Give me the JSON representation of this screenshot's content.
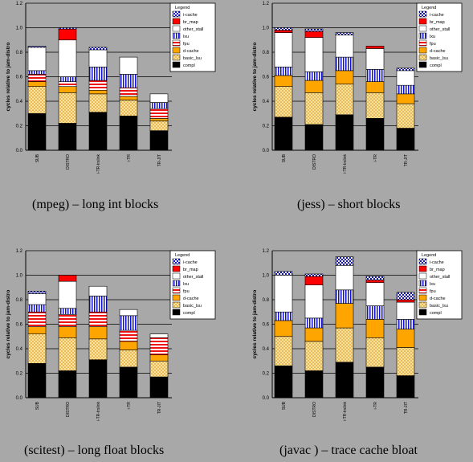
{
  "segments": [
    "compl",
    "basic_lsu",
    "d-cache",
    "fpu",
    "lxu",
    "other_stall",
    "br_map",
    "i-cache"
  ],
  "legend_order": [
    "i-cache",
    "br_map",
    "other_stall",
    "lxu",
    "fpu",
    "d-cache",
    "basic_lsu",
    "compl"
  ],
  "styles": {
    "compl": {
      "fill": "#000000",
      "pattern": "solid"
    },
    "basic_lsu": {
      "fill": "#f5e09a",
      "pattern": "dots"
    },
    "d-cache": {
      "fill": "#ffa500",
      "pattern": "solid"
    },
    "fpu": {
      "fill": "#ffffff",
      "pattern": "hstripe-red"
    },
    "lxu": {
      "fill": "#ffffff",
      "pattern": "vstripe-blue"
    },
    "other_stall": {
      "fill": "#ffffff",
      "pattern": "solid"
    },
    "br_map": {
      "fill": "#ff0000",
      "pattern": "solid"
    },
    "i-cache": {
      "fill": "#ffffff",
      "pattern": "check-blue"
    }
  },
  "captions": [
    "(mpeg) – long int blocks",
    "(jess) – short blocks",
    "(scitest) – long float blocks",
    "(javac ) – trace cache bloat"
  ],
  "chart_data": [
    {
      "type": "bar",
      "stacked": true,
      "ylabel": "cycles relative to jam-distro",
      "ylim": [
        0,
        1.2
      ],
      "yticks": [
        0.0,
        0.2,
        0.4,
        0.6,
        0.8,
        1.0,
        1.2
      ],
      "legend_title": "Legend",
      "categories": [
        "SUB",
        "DISTRO",
        "i-TR-trslink",
        "i-TR",
        "TR-JIT"
      ],
      "series": [
        {
          "name": "compl",
          "values": [
            0.3,
            0.22,
            0.31,
            0.28,
            0.16
          ]
        },
        {
          "name": "basic_lsu",
          "values": [
            0.22,
            0.25,
            0.15,
            0.13,
            0.08
          ]
        },
        {
          "name": "d-cache",
          "values": [
            0.04,
            0.05,
            0.03,
            0.03,
            0.02
          ]
        },
        {
          "name": "fpu",
          "values": [
            0.06,
            0.04,
            0.08,
            0.07,
            0.08
          ]
        },
        {
          "name": "lxu",
          "values": [
            0.03,
            0.04,
            0.11,
            0.11,
            0.05
          ]
        },
        {
          "name": "other_stall",
          "values": [
            0.19,
            0.3,
            0.14,
            0.14,
            0.07
          ]
        },
        {
          "name": "br_map",
          "values": [
            0.0,
            0.09,
            0.0,
            0.0,
            0.0
          ]
        },
        {
          "name": "i-cache",
          "values": [
            0.01,
            0.01,
            0.02,
            0.0,
            0.0
          ]
        }
      ]
    },
    {
      "type": "bar",
      "stacked": true,
      "ylabel": "cycles relative to jam-distro",
      "ylim": [
        0,
        1.2
      ],
      "yticks": [
        0.0,
        0.2,
        0.4,
        0.6,
        0.8,
        1.0,
        1.2
      ],
      "legend_title": "Legend",
      "categories": [
        "SUB",
        "DISTRO",
        "i-TR-trslink",
        "i-TR",
        "TR-JIT"
      ],
      "series": [
        {
          "name": "compl",
          "values": [
            0.27,
            0.21,
            0.29,
            0.26,
            0.18
          ]
        },
        {
          "name": "basic_lsu",
          "values": [
            0.25,
            0.26,
            0.25,
            0.21,
            0.2
          ]
        },
        {
          "name": "d-cache",
          "values": [
            0.09,
            0.1,
            0.11,
            0.09,
            0.08
          ]
        },
        {
          "name": "fpu",
          "values": [
            0.0,
            0.0,
            0.0,
            0.0,
            0.0
          ]
        },
        {
          "name": "lxu",
          "values": [
            0.07,
            0.07,
            0.11,
            0.1,
            0.07
          ]
        },
        {
          "name": "other_stall",
          "values": [
            0.28,
            0.28,
            0.18,
            0.17,
            0.12
          ]
        },
        {
          "name": "br_map",
          "values": [
            0.02,
            0.05,
            0.0,
            0.02,
            0.0
          ]
        },
        {
          "name": "i-cache",
          "values": [
            0.02,
            0.02,
            0.02,
            0.0,
            0.02
          ]
        }
      ]
    },
    {
      "type": "bar",
      "stacked": true,
      "ylabel": "cycles relative to jam-distro",
      "ylim": [
        0,
        1.2
      ],
      "yticks": [
        0.0,
        0.2,
        0.4,
        0.6,
        0.8,
        1.0,
        1.2
      ],
      "legend_title": "Legend",
      "categories": [
        "SUB",
        "DISTRO",
        "i-TR-trslink",
        "i-TR",
        "TR-JIT"
      ],
      "series": [
        {
          "name": "compl",
          "values": [
            0.28,
            0.22,
            0.31,
            0.25,
            0.17
          ]
        },
        {
          "name": "basic_lsu",
          "values": [
            0.24,
            0.27,
            0.17,
            0.14,
            0.13
          ]
        },
        {
          "name": "d-cache",
          "values": [
            0.06,
            0.09,
            0.1,
            0.07,
            0.05
          ]
        },
        {
          "name": "fpu",
          "values": [
            0.12,
            0.1,
            0.12,
            0.09,
            0.14
          ]
        },
        {
          "name": "lxu",
          "values": [
            0.06,
            0.05,
            0.13,
            0.12,
            0.0
          ]
        },
        {
          "name": "other_stall",
          "values": [
            0.09,
            0.22,
            0.08,
            0.05,
            0.03
          ]
        },
        {
          "name": "br_map",
          "values": [
            0.0,
            0.05,
            0.0,
            0.0,
            0.0
          ]
        },
        {
          "name": "i-cache",
          "values": [
            0.02,
            0.0,
            0.0,
            0.0,
            0.0
          ]
        }
      ]
    },
    {
      "type": "bar",
      "stacked": true,
      "ylabel": "cycles relative to jam-distro",
      "ylim": [
        0,
        1.2
      ],
      "yticks": [
        0.0,
        0.2,
        0.4,
        0.6,
        0.8,
        1.0,
        1.2
      ],
      "legend_title": "Legend",
      "categories": [
        "SUB",
        "DISTRO",
        "i-TR-trslink",
        "i-TR",
        "TR-JIT"
      ],
      "series": [
        {
          "name": "compl",
          "values": [
            0.26,
            0.22,
            0.29,
            0.25,
            0.18
          ]
        },
        {
          "name": "basic_lsu",
          "values": [
            0.24,
            0.24,
            0.28,
            0.24,
            0.23
          ]
        },
        {
          "name": "d-cache",
          "values": [
            0.13,
            0.11,
            0.2,
            0.15,
            0.15
          ]
        },
        {
          "name": "fpu",
          "values": [
            0.0,
            0.0,
            0.0,
            0.0,
            0.0
          ]
        },
        {
          "name": "lxu",
          "values": [
            0.07,
            0.08,
            0.11,
            0.11,
            0.08
          ]
        },
        {
          "name": "other_stall",
          "values": [
            0.3,
            0.27,
            0.2,
            0.19,
            0.14
          ]
        },
        {
          "name": "br_map",
          "values": [
            0.0,
            0.07,
            0.0,
            0.02,
            0.02
          ]
        },
        {
          "name": "i-cache",
          "values": [
            0.03,
            0.02,
            0.07,
            0.03,
            0.06
          ]
        }
      ]
    }
  ]
}
